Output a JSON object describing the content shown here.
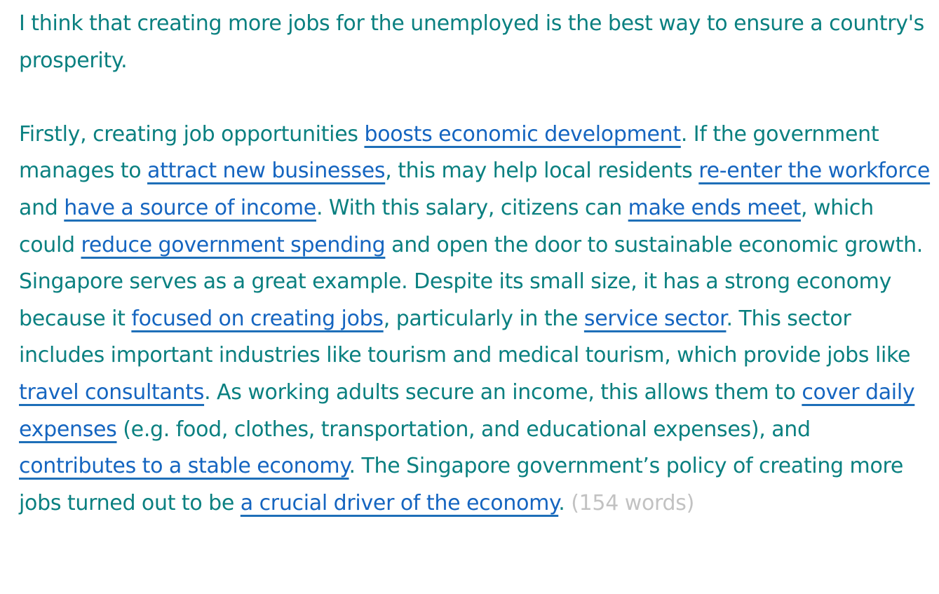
{
  "essay": {
    "intro": "I think that creating more jobs for the unemployed is the best way to ensure a country's prosperity.",
    "body": [
      {
        "type": "text",
        "text": "Firstly, creating job opportunities "
      },
      {
        "type": "link",
        "text": "boosts economic development"
      },
      {
        "type": "text",
        "text": ". If the government manages to "
      },
      {
        "type": "link",
        "text": "attract new businesses"
      },
      {
        "type": "text",
        "text": ", this may help local residents "
      },
      {
        "type": "link",
        "text": "re-enter the workforce"
      },
      {
        "type": "text",
        "text": " and "
      },
      {
        "type": "link",
        "text": "have a source of income"
      },
      {
        "type": "text",
        "text": ". With this salary, citizens can "
      },
      {
        "type": "link",
        "text": "make ends meet"
      },
      {
        "type": "text",
        "text": ", which could "
      },
      {
        "type": "link",
        "text": "reduce government spending"
      },
      {
        "type": "text",
        "text": " and open the door to sustainable economic growth. Singapore serves as a great example. Despite its small size, it has a strong economy because it "
      },
      {
        "type": "link",
        "text": "focused on creating jobs"
      },
      {
        "type": "text",
        "text": ", particularly in the "
      },
      {
        "type": "link",
        "text": "service sector"
      },
      {
        "type": "text",
        "text": ". This sector includes important industries like tourism and medical tourism, which provide jobs like "
      },
      {
        "type": "link",
        "text": "travel consultants"
      },
      {
        "type": "text",
        "text": ". As working adults secure an income, this allows them to "
      },
      {
        "type": "link",
        "text": "cover daily expenses"
      },
      {
        "type": "text",
        "text": " (e.g. food, clothes, transportation, and educational expenses), and "
      },
      {
        "type": "link",
        "text": "contributes to a stable economy"
      },
      {
        "type": "text",
        "text": ". The Singapore government’s policy of creating more jobs turned out to be "
      },
      {
        "type": "link",
        "text": "a crucial driver of the economy"
      },
      {
        "type": "text",
        "text": ". "
      }
    ],
    "word_count": "(154 words)"
  },
  "colors": {
    "text": "#0a8080",
    "link": "#1565c0",
    "underline": "#1e6fb8",
    "word_count": "#c2c2c2",
    "background": "#ffffff"
  }
}
